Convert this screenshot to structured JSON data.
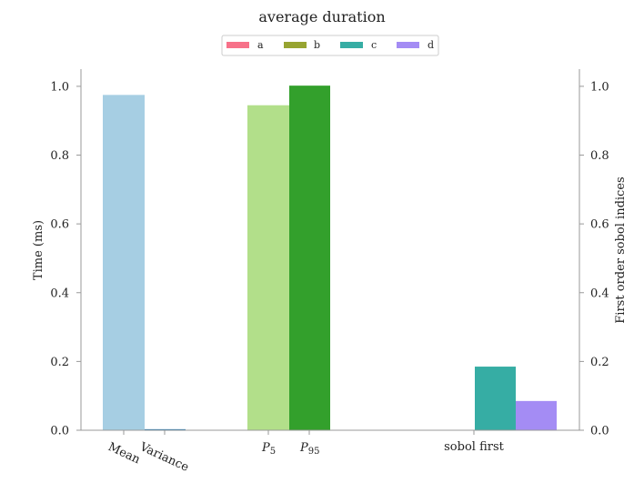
{
  "colors": {
    "mean": "#a6cee3",
    "variance": "#1f78b4",
    "p5": "#b2df8a",
    "p95": "#33a02c",
    "legend_a": "#f77189",
    "legend_b": "#97a431",
    "legend_c": "#36ada4",
    "legend_d": "#a48cf4",
    "axis": "#999999"
  },
  "chart_data": {
    "type": "bar",
    "title": "average duration",
    "ylabel_left": "Time (ms)",
    "ylabel_right": "First order sobol indices",
    "ylim_left": [
      0,
      1.05
    ],
    "ylim_right": [
      0,
      1.05
    ],
    "yticks_left": [
      "0.0",
      "0.2",
      "0.4",
      "0.6",
      "0.8",
      "1.0"
    ],
    "yticks_right": [
      "0.0",
      "0.2",
      "0.4",
      "0.6",
      "0.8",
      "1.0"
    ],
    "xtick_labels": {
      "mean": "Mean",
      "variance": "Variance",
      "p5_base": "P",
      "p5_sub": "5",
      "p95_base": "P",
      "p95_sub": "95",
      "sobol": "sobol first"
    },
    "legend": {
      "position": "top-center",
      "entries": [
        "a",
        "b",
        "c",
        "d"
      ]
    },
    "series": [
      {
        "name": "Mean",
        "axis": "left",
        "value": 0.975
      },
      {
        "name": "Variance",
        "axis": "left",
        "value": 0.003
      },
      {
        "name": "P5",
        "axis": "left",
        "value": 0.945
      },
      {
        "name": "P95",
        "axis": "left",
        "value": 1.002
      },
      {
        "name": "sobol first c",
        "axis": "right",
        "value": 0.185
      },
      {
        "name": "sobol first d",
        "axis": "right",
        "value": 0.085
      }
    ]
  }
}
